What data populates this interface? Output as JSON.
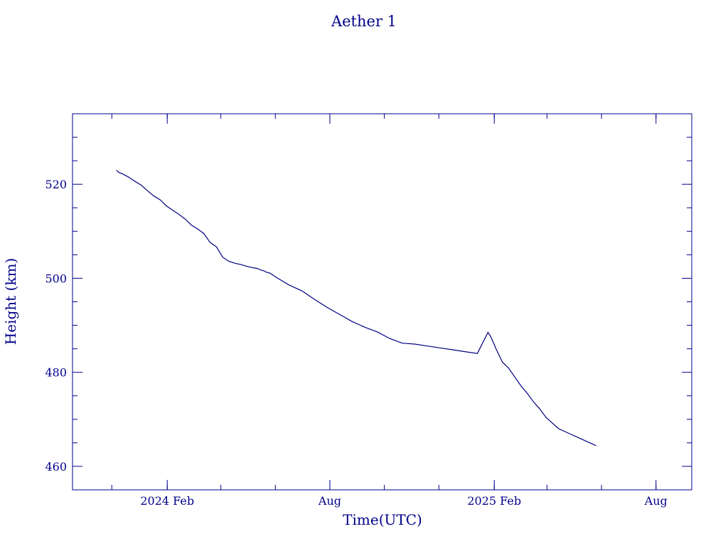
{
  "chart_data": {
    "type": "line",
    "title": "Aether 1",
    "xlabel": "Time(UTC)",
    "ylabel": "Height (km)",
    "colors": {
      "axes": "#00008b",
      "series": "#000080"
    },
    "grid": false,
    "xlim": [
      "2023-10-18",
      "2025-09-10"
    ],
    "ylim": [
      455,
      535
    ],
    "y_ticks": [
      {
        "value": 460,
        "label": "460"
      },
      {
        "value": 480,
        "label": "480"
      },
      {
        "value": 500,
        "label": "500"
      },
      {
        "value": 520,
        "label": "520"
      }
    ],
    "x_ticks": [
      {
        "date": "2024-02-01",
        "label": "2024 Feb"
      },
      {
        "date": "2024-08-01",
        "label": "Aug"
      },
      {
        "date": "2025-02-01",
        "label": "2025 Feb"
      },
      {
        "date": "2025-08-01",
        "label": "Aug"
      }
    ],
    "series": [
      {
        "x": [
          "2023-12-06",
          "2023-12-09",
          "2023-12-13",
          "2023-12-20",
          "2023-12-27",
          "2024-01-03",
          "2024-01-10",
          "2024-01-17",
          "2024-01-24",
          "2024-01-31",
          "2024-02-07",
          "2024-02-14",
          "2024-02-21",
          "2024-02-28",
          "2024-03-06",
          "2024-03-13",
          "2024-03-20",
          "2024-03-27",
          "2024-04-03",
          "2024-04-10",
          "2024-04-17",
          "2024-04-24",
          "2024-05-01",
          "2024-05-08",
          "2024-05-12",
          "2024-05-15",
          "2024-05-19",
          "2024-05-22",
          "2024-05-26",
          "2024-06-02",
          "2024-06-16",
          "2024-07-01",
          "2024-07-15",
          "2024-07-29",
          "2024-08-12",
          "2024-08-26",
          "2024-09-09",
          "2024-09-23",
          "2024-10-07",
          "2024-10-21",
          "2024-11-04",
          "2024-11-18",
          "2024-12-02",
          "2024-12-16",
          "2024-12-30",
          "2025-01-13",
          "2025-01-25",
          "2025-01-28",
          "2025-01-31",
          "2025-02-03",
          "2025-02-10",
          "2025-02-17",
          "2025-02-24",
          "2025-03-03",
          "2025-03-10",
          "2025-03-17",
          "2025-03-24",
          "2025-03-31",
          "2025-04-07",
          "2025-04-14",
          "2025-04-21",
          "2025-04-28",
          "2025-05-05",
          "2025-05-12",
          "2025-05-19",
          "2025-05-26"
        ],
        "y": [
          523.0,
          522.5,
          522.2,
          521.5,
          520.6,
          519.8,
          518.6,
          517.5,
          516.7,
          515.4,
          514.5,
          513.6,
          512.6,
          511.3,
          510.5,
          509.5,
          507.6,
          506.7,
          504.5,
          503.6,
          503.2,
          502.9,
          502.5,
          502.2,
          502.1,
          501.8,
          501.6,
          501.3,
          501.1,
          500.2,
          498.6,
          497.3,
          495.5,
          493.8,
          492.3,
          490.8,
          489.6,
          488.6,
          487.2,
          486.2,
          486.0,
          485.6,
          485.2,
          484.8,
          484.4,
          484.0,
          488.5,
          487.6,
          486.3,
          485.0,
          482.2,
          480.9,
          479.0,
          477.1,
          475.5,
          473.7,
          472.2,
          470.4,
          469.2,
          468.0,
          467.4,
          466.8,
          466.2,
          465.6,
          465.0,
          464.4
        ]
      }
    ]
  }
}
